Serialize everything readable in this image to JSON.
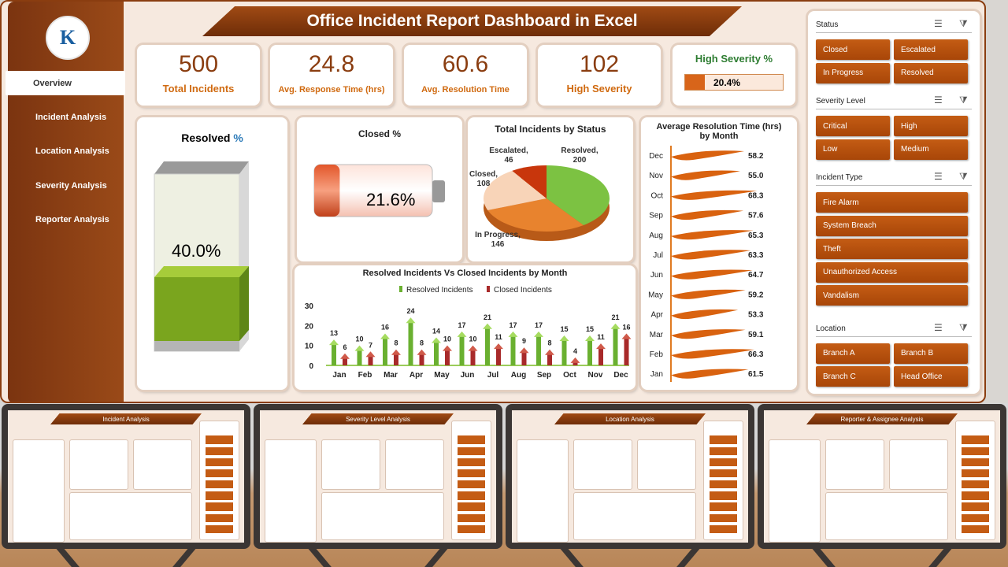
{
  "header": {
    "title": "Office Incident Report Dashboard in Excel",
    "logo_text": "K"
  },
  "sidebar": {
    "items": [
      {
        "label": "Overview",
        "selected": true
      },
      {
        "label": "Incident Analysis"
      },
      {
        "label": "Location Analysis"
      },
      {
        "label": "Severity Analysis"
      },
      {
        "label": "Reporter Analysis"
      }
    ]
  },
  "kpis": [
    {
      "value": "500",
      "label": "Total Incidents"
    },
    {
      "value": "24.8",
      "label": "Avg. Response Time (hrs)"
    },
    {
      "value": "60.6",
      "label": "Avg. Resolution Time"
    },
    {
      "value": "102",
      "label": "High Severity"
    }
  ],
  "high_severity": {
    "title": "High Severity %",
    "value": "20.4%",
    "fraction": 0.204
  },
  "resolved": {
    "title": "Resolved",
    "title_suffix": "%",
    "value": "40.0%",
    "fraction": 0.4
  },
  "closed": {
    "title": "Closed %",
    "value": "21.6%",
    "fraction": 0.216
  },
  "colors": {
    "brand": "#8a3d10",
    "accent": "#d06a10",
    "green": "#7cc242",
    "red": "#a82a2a"
  },
  "chart_data": [
    {
      "type": "pie",
      "title": "Total Incidents by Status",
      "categories": [
        "Resolved",
        "In Progress",
        "Closed",
        "Escalated"
      ],
      "values": [
        200,
        146,
        108,
        46
      ],
      "colors": [
        "#7cc242",
        "#e8832e",
        "#f8d4b8",
        "#c8360c"
      ]
    },
    {
      "type": "bar",
      "title": "Average Resolution Time (hrs) by Month",
      "orientation": "horizontal",
      "categories": [
        "Dec",
        "Nov",
        "Oct",
        "Sep",
        "Aug",
        "Jul",
        "Jun",
        "May",
        "Apr",
        "Mar",
        "Feb",
        "Jan"
      ],
      "values": [
        58.2,
        55.0,
        68.3,
        57.6,
        65.3,
        63.3,
        64.7,
        59.2,
        53.3,
        59.1,
        66.3,
        61.5
      ]
    },
    {
      "type": "bar",
      "title": "Resolved Incidents Vs Closed Incidents by Month",
      "categories": [
        "Jan",
        "Feb",
        "Mar",
        "Apr",
        "May",
        "Jun",
        "Jul",
        "Aug",
        "Sep",
        "Oct",
        "Nov",
        "Dec"
      ],
      "series": [
        {
          "name": "Resolved Incidents",
          "values": [
            13,
            10,
            16,
            24,
            14,
            17,
            21,
            17,
            17,
            15,
            15,
            21
          ]
        },
        {
          "name": "Closed Incidents",
          "values": [
            6,
            7,
            8,
            8,
            10,
            10,
            11,
            9,
            8,
            4,
            11,
            16
          ]
        }
      ],
      "ylim": [
        0,
        30
      ],
      "yticks": [
        0,
        10,
        20,
        30
      ],
      "legend": "top"
    }
  ],
  "slicers": [
    {
      "title": "Status",
      "items": [
        "Closed",
        "Escalated",
        "In Progress",
        "Resolved"
      ],
      "cols": 2
    },
    {
      "title": "Severity Level",
      "items": [
        "Critical",
        "High",
        "Low",
        "Medium"
      ],
      "cols": 2
    },
    {
      "title": "Incident Type",
      "items": [
        "Fire Alarm",
        "System Breach",
        "Theft",
        "Unauthorized Access",
        "Vandalism"
      ],
      "cols": 1
    },
    {
      "title": "Location",
      "items": [
        "Branch A",
        "Branch B",
        "Branch C",
        "Head Office"
      ],
      "cols": 2
    }
  ],
  "previews": [
    {
      "title": "Incident Analysis"
    },
    {
      "title": "Severity Level Analysis"
    },
    {
      "title": "Location Analysis"
    },
    {
      "title": "Reporter & Assignee Analysis"
    }
  ]
}
